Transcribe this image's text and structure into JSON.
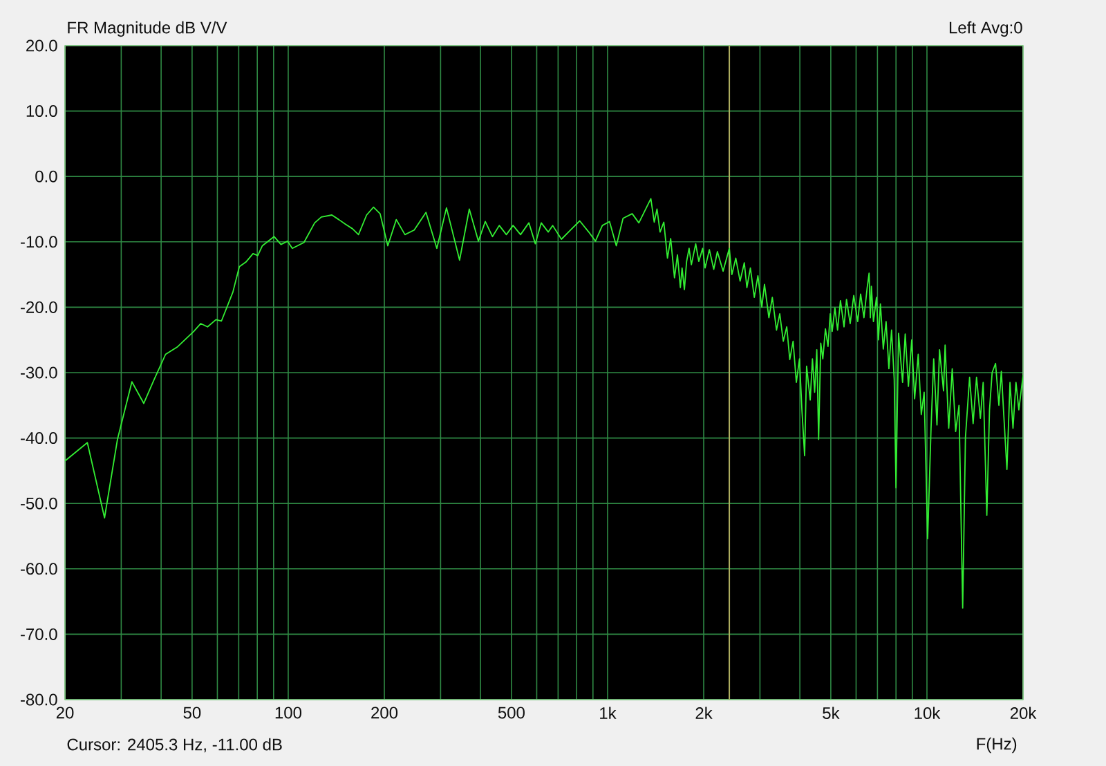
{
  "chart_data": {
    "type": "line",
    "title": "FR Magnitude dB V/V",
    "xlabel": "F(Hz)",
    "annotations": [
      "Left Avg:0",
      "Cursor: 2405.3 Hz, -11.00 dB"
    ],
    "log": "x",
    "grid": true,
    "color": "#33ee33",
    "xlim": [
      20,
      20000
    ],
    "ylim": [
      -80,
      20
    ],
    "xticks": [
      20,
      {
        "value": 30,
        "label": null
      },
      {
        "value": 40,
        "label": null
      },
      50,
      {
        "value": 60,
        "label": null
      },
      {
        "value": 70,
        "label": null
      },
      {
        "value": 80,
        "label": null
      },
      {
        "value": 90,
        "label": null
      },
      100,
      200,
      {
        "value": 300,
        "label": null
      },
      {
        "value": 400,
        "label": null
      },
      500,
      {
        "value": 600,
        "label": null
      },
      {
        "value": 700,
        "label": null
      },
      {
        "value": 800,
        "label": null
      },
      {
        "value": 900,
        "label": null
      },
      {
        "value": 1000,
        "label": "1k"
      },
      {
        "value": 2000,
        "label": "2k"
      },
      {
        "value": 3000,
        "label": null
      },
      {
        "value": 4000,
        "label": null
      },
      {
        "value": 5000,
        "label": "5k"
      },
      {
        "value": 6000,
        "label": null
      },
      {
        "value": 7000,
        "label": null
      },
      {
        "value": 8000,
        "label": null
      },
      {
        "value": 9000,
        "label": null
      },
      {
        "value": 10000,
        "label": "10k"
      },
      {
        "value": 20000,
        "label": "20k"
      }
    ],
    "yticks": [
      {
        "value": -80,
        "label": "-80.0"
      },
      {
        "value": -70,
        "label": "-70.0"
      },
      {
        "value": -60,
        "label": "-60.0"
      },
      {
        "value": -50,
        "label": "-50.0"
      },
      {
        "value": -40,
        "label": "-40.0"
      },
      {
        "value": -30,
        "label": "-30.0"
      },
      {
        "value": -20,
        "label": "-20.0"
      },
      {
        "value": -10,
        "label": "-10.0"
      },
      {
        "value": 0,
        "label": "0.0"
      },
      {
        "value": 10,
        "label": "10.0"
      },
      {
        "value": 20,
        "label": "20.0"
      }
    ],
    "ref_lines": [
      {
        "axis": "x",
        "value": 2405.3,
        "color": "#b0b060"
      }
    ],
    "x": [
      20,
      23.5,
      26.6,
      29.2,
      32.4,
      35.3,
      38,
      41.3,
      44.9,
      50.6,
      53.2,
      55.9,
      59.4,
      61.8,
      67.1,
      70.3,
      73.7,
      77.6,
      80.3,
      83,
      90.3,
      94.9,
      99.5,
      103,
      112,
      121,
      127,
      137,
      144,
      151,
      159,
      166,
      176,
      185,
      194,
      205,
      218,
      232,
      248,
      270,
      292,
      313,
      344,
      369,
      394,
      414,
      436,
      458,
      482,
      506,
      534,
      567,
      594,
      620,
      652,
      673,
      717,
      765,
      818,
      873,
      916,
      963,
      1014,
      1065,
      1118,
      1194,
      1253,
      1366,
      1400,
      1428,
      1460,
      1500,
      1540,
      1576,
      1620,
      1655,
      1690,
      1711,
      1740,
      1768,
      1800,
      1830,
      1888,
      1930,
      1985,
      2020,
      2083,
      2150,
      2207,
      2300,
      2405,
      2450,
      2520,
      2600,
      2680,
      2730,
      2800,
      2880,
      2956,
      3040,
      3100,
      3200,
      3280,
      3380,
      3460,
      3550,
      3640,
      3720,
      3810,
      3900,
      3990,
      4060,
      4140,
      4200,
      4310,
      4380,
      4450,
      4520,
      4580,
      4650,
      4720,
      4810,
      4900,
      4980,
      5050,
      5150,
      5250,
      5360,
      5500,
      5600,
      5750,
      5900,
      6070,
      6200,
      6350,
      6500,
      6590,
      6650,
      6700,
      6800,
      6950,
      7050,
      7150,
      7300,
      7450,
      7600,
      7750,
      7900,
      8000,
      8150,
      8390,
      8550,
      8750,
      8960,
      9150,
      9390,
      9600,
      9800,
      10050,
      10300,
      10500,
      10750,
      10950,
      11270,
      11400,
      11700,
      12000,
      12300,
      12600,
      12940,
      13200,
      13600,
      13950,
      14300,
      14700,
      15000,
      15400,
      15700,
      16000,
      16400,
      16800,
      17100,
      17400,
      17800,
      18200,
      18600,
      19000,
      19400,
      20000
    ],
    "values": [
      -43.5,
      -40.7,
      -52.2,
      -40.2,
      -31.4,
      -34.7,
      -31.1,
      -27.2,
      -26.1,
      -23.7,
      -22.5,
      -23.0,
      -21.9,
      -22.1,
      -17.7,
      -13.8,
      -13.1,
      -11.8,
      -12.1,
      -10.6,
      -9.2,
      -10.4,
      -9.9,
      -11.0,
      -10.1,
      -7.1,
      -6.2,
      -5.9,
      -6.6,
      -7.3,
      -8.0,
      -8.9,
      -5.9,
      -4.7,
      -5.7,
      -10.6,
      -6.6,
      -8.9,
      -8.2,
      -5.5,
      -11.0,
      -4.8,
      -12.8,
      -5.0,
      -9.9,
      -6.9,
      -9.2,
      -7.5,
      -8.9,
      -7.5,
      -8.9,
      -7.1,
      -10.3,
      -7.1,
      -8.5,
      -7.5,
      -9.6,
      -8.2,
      -6.8,
      -8.5,
      -9.9,
      -7.5,
      -6.9,
      -10.6,
      -6.4,
      -5.7,
      -7.1,
      -3.4,
      -7.0,
      -5.0,
      -8.5,
      -7.0,
      -12.5,
      -9.5,
      -15.5,
      -12.0,
      -17.0,
      -14.0,
      -17.3,
      -13.0,
      -11.0,
      -13.5,
      -10.3,
      -13.0,
      -11.0,
      -14.0,
      -11.2,
      -14.2,
      -11.5,
      -14.5,
      -11.0,
      -15.0,
      -12.5,
      -16.0,
      -13.2,
      -17.0,
      -14.0,
      -18.5,
      -15.2,
      -20.0,
      -16.5,
      -21.6,
      -18.5,
      -23.5,
      -21.0,
      -25.2,
      -23.0,
      -28.0,
      -25.2,
      -31.5,
      -27.9,
      -35.7,
      -42.7,
      -29.0,
      -34.2,
      -27.9,
      -33.0,
      -26.5,
      -40.2,
      -25.5,
      -27.9,
      -23.3,
      -26.0,
      -21.0,
      -23.7,
      -20.1,
      -23.5,
      -19.0,
      -23.0,
      -18.8,
      -22.5,
      -18.2,
      -22.2,
      -18.0,
      -21.6,
      -17.0,
      -14.8,
      -21.6,
      -16.8,
      -22.2,
      -18.5,
      -25.0,
      -19.5,
      -26.4,
      -22.2,
      -29.4,
      -23.5,
      -31.0,
      -47.6,
      -24.0,
      -31.5,
      -24.1,
      -32.1,
      -25.0,
      -34.0,
      -27.2,
      -36.4,
      -33.0,
      -55.4,
      -38.5,
      -27.9,
      -38.0,
      -26.5,
      -32.8,
      -25.8,
      -38.5,
      -29.4,
      -39.0,
      -35.0,
      -66.0,
      -39.9,
      -30.7,
      -37.8,
      -30.7,
      -37.0,
      -31.5,
      -51.8,
      -35.7,
      -30.0,
      -28.6,
      -35.0,
      -29.8,
      -36.4,
      -44.8,
      -31.5,
      -38.5,
      -31.5,
      -35.7,
      -30.4
    ]
  }
}
